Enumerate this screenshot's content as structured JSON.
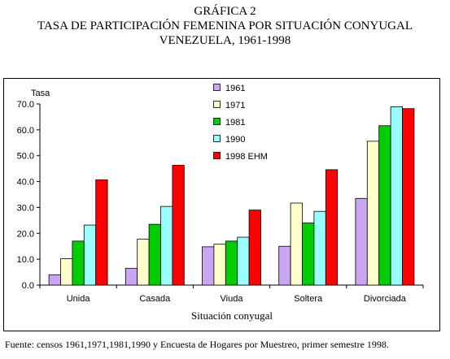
{
  "header": {
    "line1": "GRÁFICA 2",
    "line2": "TASA DE PARTICIPACIÓN FEMENINA POR SITUACIÓN CONYUGAL",
    "line3": "VENEZUELA, 1961-1998"
  },
  "chart_data": {
    "type": "bar",
    "ylabel": "Tasa",
    "xlabel": "Situación conyugal",
    "ylim": [
      0,
      70
    ],
    "yticks": [
      "0.0",
      "10.0",
      "20.0",
      "30.0",
      "40.0",
      "50.0",
      "60.0",
      "70.0"
    ],
    "categories": [
      "Unida",
      "Casada",
      "Viuda",
      "Soltera",
      "Divorciada"
    ],
    "legend_position": "top-left",
    "grid": false,
    "series": [
      {
        "name": "1961",
        "color": "#c9a5f2",
        "values": [
          4.0,
          6.5,
          14.8,
          15.0,
          33.5
        ]
      },
      {
        "name": "1971",
        "color": "#ffffcc",
        "values": [
          10.2,
          17.8,
          15.8,
          31.7,
          55.6
        ]
      },
      {
        "name": "1981",
        "color": "#00cc00",
        "values": [
          17.0,
          23.5,
          17.0,
          24.0,
          61.6
        ]
      },
      {
        "name": "1990",
        "color": "#99ffff",
        "values": [
          23.2,
          30.4,
          18.5,
          28.5,
          68.9
        ]
      },
      {
        "name": "1998 EHM",
        "color": "#ff0000",
        "values": [
          40.7,
          46.3,
          29.0,
          44.6,
          68.2
        ]
      }
    ]
  },
  "footer": {
    "source": "Fuente: censos 1961,1971,1981,1990 y Encuesta de Hogares por Muestreo, primer semestre 1998."
  }
}
